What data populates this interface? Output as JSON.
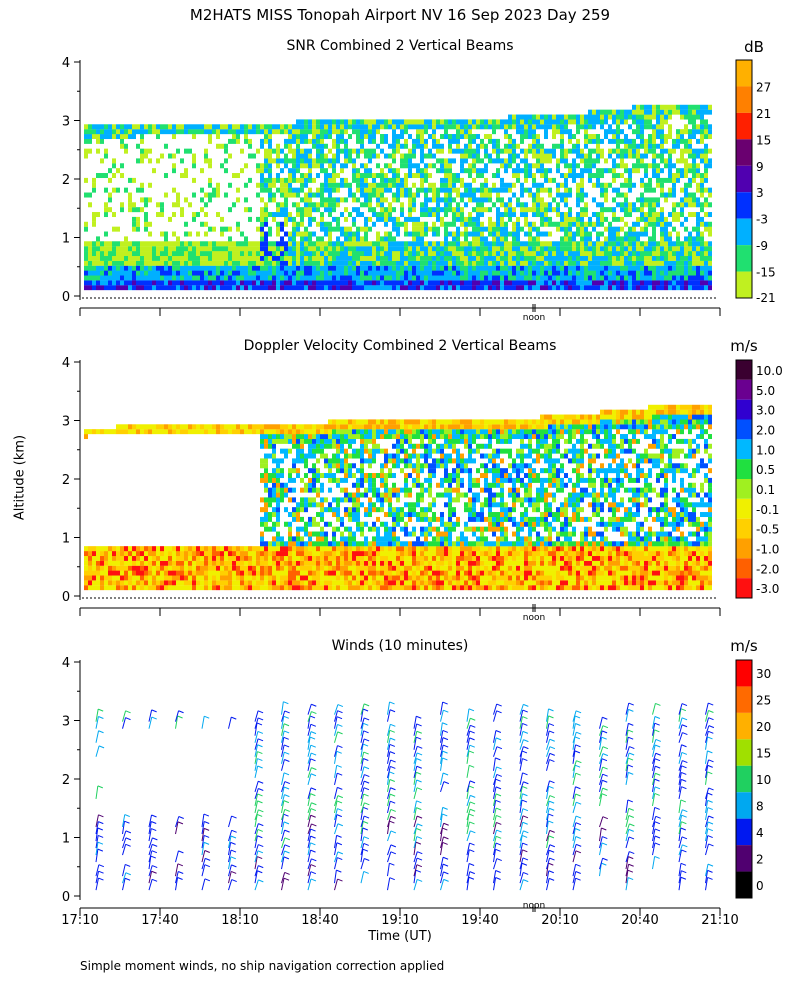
{
  "title": "M2HATS MISS Tonopah Airport NV  16 Sep 2023 Day 259",
  "ylabel": "Altitude (km)",
  "xlabel": "Time (UT)",
  "footnote": "Simple moment winds, no ship navigation correction applied",
  "noon_label": "noon",
  "colors": {
    "background": "#ffffff",
    "axis": "#000000",
    "noon_marker": "#000000"
  },
  "chart_data": [
    {
      "type": "heatmap",
      "title": "SNR Combined 2 Vertical Beams",
      "unit": "dB",
      "ylim": [
        0,
        4
      ],
      "yticks": [
        0,
        1,
        2,
        3,
        4
      ],
      "colorbar": {
        "labels": [
          "27",
          "21",
          "15",
          "9",
          "3",
          "-3",
          "-9",
          "-15",
          "-21"
        ],
        "colors": [
          "#ffb000",
          "#ff8000",
          "#ff2000",
          "#6a0070",
          "#5000b0",
          "#0030ff",
          "#00b0ff",
          "#20e070",
          "#c0f020"
        ]
      },
      "profile": [
        {
          "t": "17:10",
          "top_km": 2.8
        },
        {
          "t": "17:40",
          "top_km": 2.85
        },
        {
          "t": "18:10",
          "top_km": 2.85
        },
        {
          "t": "18:40",
          "top_km": 2.9
        },
        {
          "t": "19:10",
          "top_km": 2.95
        },
        {
          "t": "19:40",
          "top_km": 2.95
        },
        {
          "t": "20:10",
          "top_km": 3.0
        },
        {
          "t": "20:40",
          "top_km": 3.15
        },
        {
          "t": "21:10",
          "top_km": 3.2
        }
      ]
    },
    {
      "type": "heatmap",
      "title": "Doppler Velocity Combined 2 Vertical Beams",
      "unit": "m/s",
      "ylim": [
        0,
        4
      ],
      "yticks": [
        0,
        1,
        2,
        3,
        4
      ],
      "colorbar": {
        "labels": [
          "10.0",
          "5.0",
          "3.0",
          "2.0",
          "1.0",
          "0.5",
          "0.1",
          "-0.1",
          "-0.5",
          "-1.0",
          "-2.0",
          "-3.0"
        ],
        "colors": [
          "#3a0030",
          "#6a0090",
          "#3000d0",
          "#0050ff",
          "#00b8ff",
          "#20e040",
          "#a0f020",
          "#f0f000",
          "#ffd000",
          "#ffa000",
          "#ff6000",
          "#ff1010"
        ]
      }
    },
    {
      "type": "scatter",
      "title": "Winds (10 minutes)",
      "unit": "m/s",
      "ylim": [
        0,
        4
      ],
      "yticks": [
        0,
        1,
        2,
        3,
        4
      ],
      "colorbar": {
        "labels": [
          "30",
          "25",
          "20",
          "15",
          "10",
          "8",
          "4",
          "2",
          "0"
        ],
        "colors": [
          "#ff0000",
          "#ff6a00",
          "#ffb000",
          "#a0e000",
          "#20d060",
          "#00a8f0",
          "#0018f0",
          "#500070",
          "#000000"
        ]
      }
    }
  ],
  "xticks": [
    "17:10",
    "17:40",
    "18:10",
    "18:40",
    "19:10",
    "19:40",
    "20:10",
    "20:40",
    "21:10"
  ]
}
